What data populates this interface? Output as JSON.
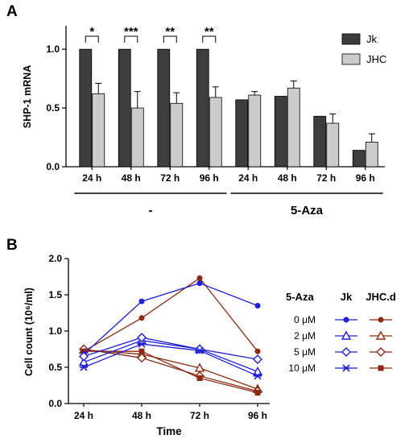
{
  "chart_data": [
    {
      "panel": "A",
      "type": "bar",
      "ylabel": "SHP-1 mRNA",
      "ylim": [
        0,
        1.2
      ],
      "yticks": [
        "0.0",
        "0.5",
        "1.0"
      ],
      "ytick_values": [
        0,
        0.5,
        1.0
      ],
      "categories": [
        "24 h",
        "48 h",
        "72 h",
        "96 h",
        "24 h",
        "48 h",
        "72 h",
        "96 h"
      ],
      "groups": [
        {
          "label": "-",
          "from": 0,
          "to": 3
        },
        {
          "label": "5-Aza",
          "from": 4,
          "to": 7
        }
      ],
      "legend_position": "top-right",
      "series": [
        {
          "name": "Jk",
          "color": "#3d3d3d",
          "values": [
            1.0,
            1.0,
            1.0,
            1.0,
            0.57,
            0.6,
            0.43,
            0.14
          ],
          "errors": [
            0,
            0,
            0,
            0,
            0,
            0,
            0,
            0
          ]
        },
        {
          "name": "JHC",
          "color": "#cccccc",
          "values": [
            0.62,
            0.5,
            0.54,
            0.59,
            0.61,
            0.67,
            0.37,
            0.21
          ],
          "errors": [
            0.09,
            0.14,
            0.09,
            0.09,
            0.03,
            0.06,
            0.08,
            0.07
          ]
        }
      ],
      "significance": [
        {
          "index": 0,
          "label": "*"
        },
        {
          "index": 1,
          "label": "***"
        },
        {
          "index": 2,
          "label": "**"
        },
        {
          "index": 3,
          "label": "**"
        }
      ]
    },
    {
      "panel": "B",
      "type": "line",
      "ylabel": "Cell count (10⁶/ml)",
      "xlabel": "Time",
      "ylim": [
        0,
        2.0
      ],
      "yticks": [
        "0.0",
        "0.5",
        "1.0",
        "1.5",
        "2.0"
      ],
      "ytick_values": [
        0,
        0.5,
        1.0,
        1.5,
        2.0
      ],
      "categories": [
        "24 h",
        "48 h",
        "72 h",
        "96 h"
      ],
      "legend_title": "5-Aza",
      "legend_col1": "Jk",
      "legend_col2": "JHC.d",
      "conc_labels": [
        "0 μM",
        "2 μM",
        "5 μM",
        "10 μM"
      ],
      "colors": {
        "Jk": "#1f1fd6",
        "JHC.d": "#8b2a12"
      },
      "series": [
        {
          "cell": "Jk",
          "conc": 0,
          "marker": "dot",
          "values": [
            0.68,
            1.41,
            1.66,
            1.35
          ]
        },
        {
          "cell": "Jk",
          "conc": 1,
          "marker": "triangle",
          "values": [
            0.57,
            0.87,
            0.75,
            0.44
          ]
        },
        {
          "cell": "Jk",
          "conc": 2,
          "marker": "diamond",
          "values": [
            0.65,
            0.91,
            0.75,
            0.61
          ]
        },
        {
          "cell": "Jk",
          "conc": 3,
          "marker": "star",
          "values": [
            0.5,
            0.82,
            0.73,
            0.38
          ]
        },
        {
          "cell": "JHC.d",
          "conc": 0,
          "marker": "dot",
          "values": [
            0.72,
            1.18,
            1.73,
            0.72
          ]
        },
        {
          "cell": "JHC.d",
          "conc": 1,
          "marker": "triangle",
          "values": [
            0.74,
            0.68,
            0.49,
            0.2
          ]
        },
        {
          "cell": "JHC.d",
          "conc": 2,
          "marker": "diamond",
          "values": [
            0.75,
            0.63,
            0.38,
            0.17
          ]
        },
        {
          "cell": "JHC.d",
          "conc": 3,
          "marker": "square",
          "values": [
            0.72,
            0.72,
            0.35,
            0.15
          ]
        }
      ]
    }
  ]
}
